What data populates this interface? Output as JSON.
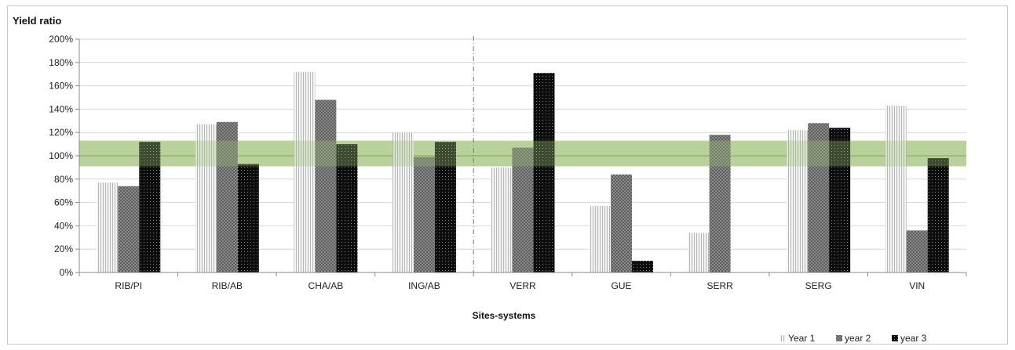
{
  "chart_data": {
    "type": "bar",
    "title": "",
    "ylabel": "Yield ratio",
    "xlabel": "Sites-systems",
    "categories": [
      "RIB/PI",
      "RIB/AB",
      "CHA/AB",
      "ING/AB",
      "VERR",
      "GUE",
      "SERR",
      "SERG",
      "VIN"
    ],
    "ylim": [
      0,
      200
    ],
    "ytick_labels": [
      "0%",
      "20%",
      "40%",
      "60%",
      "80%",
      "100%",
      "120%",
      "140%",
      "160%",
      "180%",
      "200%"
    ],
    "ytick_values": [
      0,
      20,
      40,
      60,
      80,
      100,
      120,
      140,
      160,
      180,
      200
    ],
    "grid": true,
    "legend_position": "bottom-right",
    "separator_after_category": "ING/AB",
    "reference_band": {
      "from": 91,
      "to": 113,
      "line": 100,
      "color": "#9cbf73"
    },
    "series": [
      {
        "name": "Year 1",
        "color": "#d9d9d9",
        "values": [
          77,
          127,
          172,
          120,
          90,
          57,
          34,
          122,
          143
        ]
      },
      {
        "name": "year 2",
        "color": "#8c8c8c",
        "values": [
          74,
          129,
          148,
          99,
          107,
          84,
          118,
          128,
          36
        ]
      },
      {
        "name": "year 3",
        "color": "#111111",
        "values": [
          112,
          93,
          110,
          112,
          171,
          10,
          0,
          124,
          98
        ]
      }
    ]
  }
}
